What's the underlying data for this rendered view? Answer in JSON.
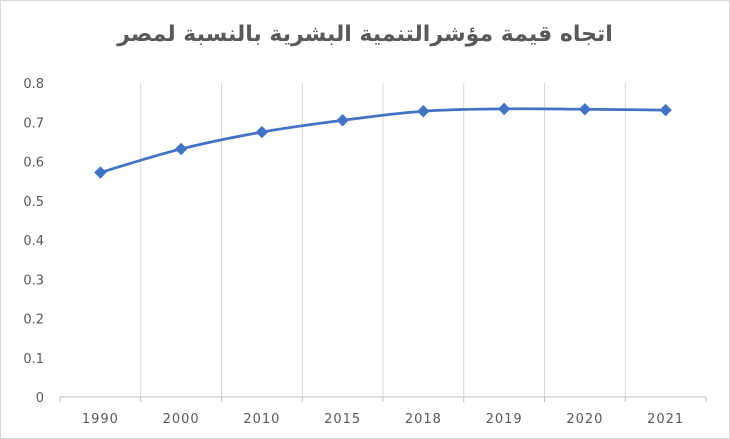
{
  "chart_data": {
    "type": "line",
    "title": "اتجاه قيمة مؤشرالتنمية البشرية بالنسبة لمصر",
    "categories": [
      "1990",
      "2000",
      "2010",
      "2015",
      "2018",
      "2019",
      "2020",
      "2021"
    ],
    "series": [
      {
        "values": [
          0.572,
          0.632,
          0.675,
          0.705,
          0.728,
          0.734,
          0.733,
          0.731
        ],
        "color": "#4472c4",
        "marker": "diamond"
      }
    ],
    "ylim": [
      0,
      0.8
    ],
    "yticks": [
      "0",
      "0.1",
      "0.2",
      "0.3",
      "0.4",
      "0.5",
      "0.6",
      "0.7",
      "0.8"
    ],
    "grid": "vertical",
    "legend": "none"
  }
}
